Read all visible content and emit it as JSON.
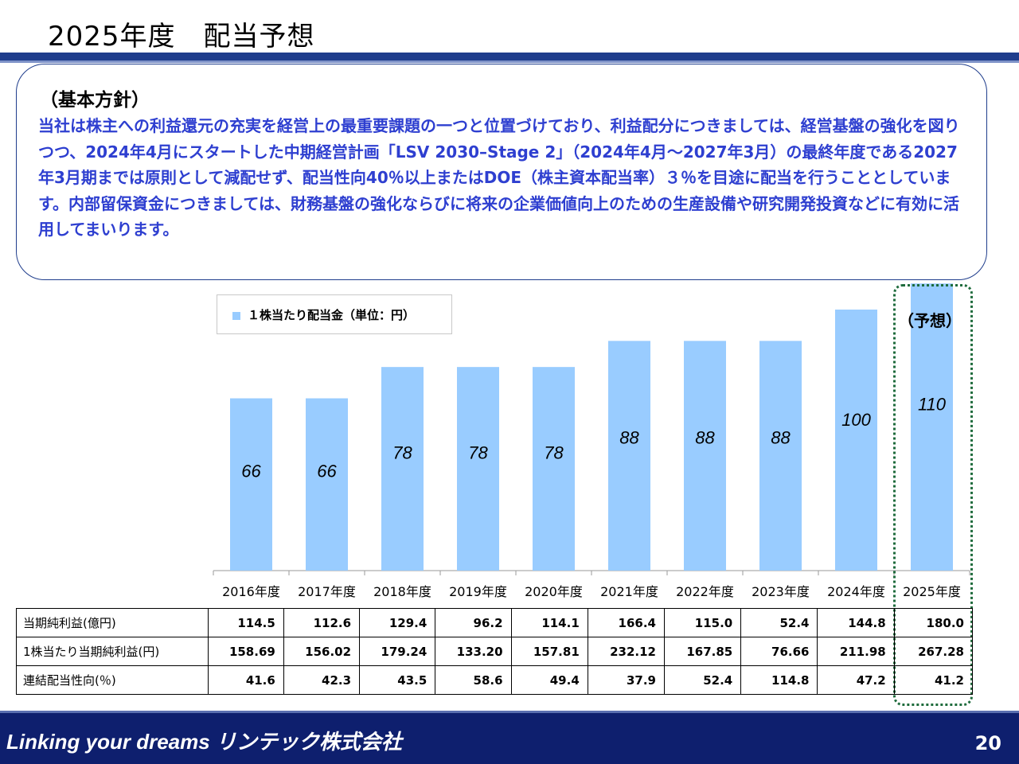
{
  "header": {
    "title": "2025年度　配当予想"
  },
  "policy": {
    "heading": "（基本方針）",
    "body": "当社は株主への利益還元の充実を経営上の最重要課題の一つと位置づけており、利益配分につきましては、経営基盤の強化を図りつつ、2024年4月にスタートした中期経営計画「LSV 2030–Stage 2」（2024年4月～2027年3月）の最終年度である2027年3月期までは原則として減配せず、配当性向40％以上またはDOE（株主資本配当率）３％を目途に配当を行うこととしています。内部留保資金につきましては、財務基盤の強化ならびに将来の企業価値向上のための生産設備や研究開発投資などに有効に活用してまいります。"
  },
  "chart_data": {
    "type": "bar",
    "categories": [
      "2016年度",
      "2017年度",
      "2018年度",
      "2019年度",
      "2020年度",
      "2021年度",
      "2022年度",
      "2023年度",
      "2024年度",
      "2025年度"
    ],
    "series": [
      {
        "name": "１株当たり配当金（単位：円）",
        "values": [
          66,
          66,
          78,
          78,
          78,
          88,
          88,
          88,
          100,
          110
        ],
        "color": "#99ccff"
      }
    ],
    "data_labels": [
      "66",
      "66",
      "78",
      "78",
      "78",
      "88",
      "88",
      "88",
      "100",
      "110"
    ],
    "ylim": [
      0,
      115
    ],
    "grid": false,
    "legend_position": "top-left",
    "forecast_label": "（予想）"
  },
  "table": {
    "rows": [
      {
        "label": "当期純利益(億円)",
        "values": [
          "114.5",
          "112.6",
          "129.4",
          "96.2",
          "114.1",
          "166.4",
          "115.0",
          "52.4",
          "144.8",
          "180.0"
        ]
      },
      {
        "label": "1株当たり当期純利益(円)",
        "values": [
          "158.69",
          "156.02",
          "179.24",
          "133.20",
          "157.81",
          "232.12",
          "167.85",
          "76.66",
          "211.98",
          "267.28"
        ]
      },
      {
        "label": "連結配当性向(％)",
        "values": [
          "41.6",
          "42.3",
          "43.5",
          "58.6",
          "49.4",
          "37.9",
          "52.4",
          "114.8",
          "47.2",
          "41.2"
        ]
      }
    ]
  },
  "footer": {
    "brand": "Linking your dreams  リンテック株式会社",
    "page_number": "20"
  }
}
